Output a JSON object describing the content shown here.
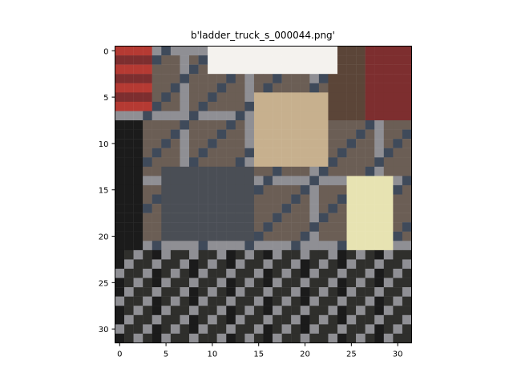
{
  "title": "b'ladder_truck_s_000044.png'",
  "image": {
    "description_hidden": true,
    "grid": "32x32 pixelated photo of a ladder truck",
    "dominant_colors": [
      "#6b5e55",
      "#4a4e55",
      "#2f2f2c",
      "#8f8f94",
      "#c7b08e",
      "#b53a33",
      "#f4f2ee",
      "#e7e3b2"
    ]
  },
  "axes": {
    "x_ticks": [
      "0",
      "5",
      "10",
      "15",
      "20",
      "25",
      "30"
    ],
    "y_ticks": [
      "0",
      "5",
      "10",
      "15",
      "20",
      "25",
      "30"
    ],
    "x_range": [
      -0.5,
      31.5
    ],
    "y_range": [
      -0.5,
      31.5
    ]
  }
}
